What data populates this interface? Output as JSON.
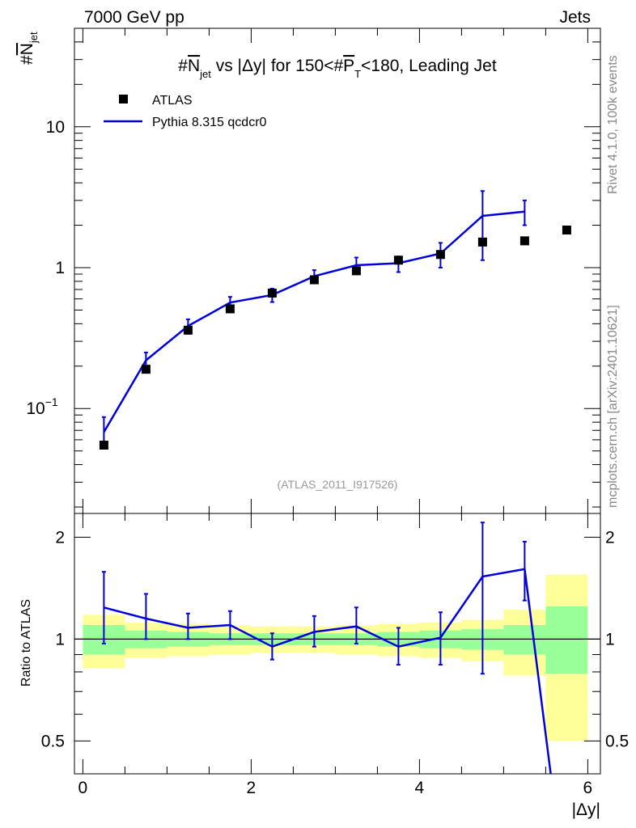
{
  "header": {
    "left": "7000 GeV pp",
    "right": "Jets"
  },
  "side_text": {
    "rivet": "Rivet 4.1.0,  100k events",
    "mcplots": "mcplots.cern.ch [arXiv:2401.10621]"
  },
  "colors": {
    "mc": "#0000dd",
    "data": "#000000",
    "band_inner": "#99ff99",
    "band_outer": "#ffff99"
  },
  "chart_data": [
    {
      "type": "scatter",
      "panel": "main",
      "title": "#N_jet vs |Δy| for 150<#P_T<180, Leading Jet",
      "title_parts": {
        "pre": "#",
        "n": "N",
        "n_sub": "jet",
        "mid": " vs |Δy| for 150<#",
        "p": "P",
        "p_sub": "T",
        "post": "<180, Leading Jet"
      },
      "ylabel": {
        "pre": "#",
        "n": "N",
        "sub": "jet"
      },
      "y_scale": "log",
      "ylim": [
        0.018,
        50
      ],
      "xlim": [
        -0.1,
        6.15
      ],
      "y_ticks": [
        {
          "value": 10,
          "label": "10"
        },
        {
          "value": 1,
          "label": "1"
        },
        {
          "value": 0.1,
          "label_base": "10",
          "label_exp": "−1"
        }
      ],
      "watermark": "(ATLAS_2011_I917526)",
      "legend": {
        "position": "top-left",
        "data_label": "ATLAS",
        "mc_label": "Pythia 8.315 qcdcr0"
      },
      "series": [
        {
          "name": "ATLAS",
          "kind": "points",
          "x": [
            0.25,
            0.75,
            1.25,
            1.75,
            2.25,
            2.75,
            3.25,
            3.75,
            4.25,
            4.75,
            5.25,
            5.75
          ],
          "y": [
            0.055,
            0.19,
            0.36,
            0.51,
            0.66,
            0.82,
            0.95,
            1.13,
            1.24,
            1.52,
            1.55,
            1.85
          ]
        },
        {
          "name": "Pythia 8.315 qcdcr0",
          "kind": "line",
          "x": [
            0.25,
            0.75,
            1.25,
            1.75,
            2.25,
            2.75,
            3.25,
            3.75,
            4.25,
            4.75,
            5.25
          ],
          "y": [
            0.068,
            0.22,
            0.385,
            0.565,
            0.64,
            0.87,
            1.04,
            1.075,
            1.26,
            2.33,
            2.5
          ],
          "err_low": [
            0.053,
            0.19,
            0.34,
            0.52,
            0.57,
            0.78,
            0.93,
            0.93,
            1.0,
            1.13,
            2.0
          ],
          "err_high": [
            0.087,
            0.25,
            0.43,
            0.62,
            0.71,
            0.96,
            1.18,
            1.2,
            1.5,
            3.5,
            3.0
          ]
        }
      ]
    },
    {
      "type": "line",
      "panel": "ratio",
      "ylabel": "Ratio to ATLAS",
      "xlabel": "|Δy|",
      "ylim": [
        0.4,
        2.35
      ],
      "xlim": [
        -0.1,
        6.15
      ],
      "y_ticks": [
        {
          "value": 0.5,
          "label": "0.5"
        },
        {
          "value": 1,
          "label": "1"
        },
        {
          "value": 2,
          "label": "2"
        }
      ],
      "x_ticks": [
        {
          "value": 0,
          "label": "0"
        },
        {
          "value": 2,
          "label": "2"
        },
        {
          "value": 4,
          "label": "4"
        },
        {
          "value": 6,
          "label": "6"
        }
      ],
      "bands": {
        "edges": [
          0,
          0.5,
          1,
          1.5,
          2,
          2.5,
          3,
          3.5,
          4,
          4.5,
          5,
          5.5,
          6
        ],
        "inner_low": [
          0.9,
          0.94,
          0.95,
          0.96,
          0.96,
          0.96,
          0.96,
          0.95,
          0.94,
          0.93,
          0.9,
          0.79
        ],
        "inner_high": [
          1.1,
          1.06,
          1.05,
          1.04,
          1.04,
          1.04,
          1.04,
          1.05,
          1.06,
          1.07,
          1.1,
          1.25
        ],
        "outer_low": [
          0.82,
          0.88,
          0.89,
          0.9,
          0.91,
          0.91,
          0.9,
          0.89,
          0.88,
          0.86,
          0.78,
          0.5
        ],
        "outer_high": [
          1.18,
          1.12,
          1.11,
          1.1,
          1.09,
          1.09,
          1.1,
          1.11,
          1.12,
          1.14,
          1.22,
          1.55
        ]
      },
      "series": [
        {
          "name": "Pythia 8.315 qcdcr0 / ATLAS",
          "x": [
            0.25,
            0.75,
            1.25,
            1.75,
            2.25,
            2.75,
            3.25,
            3.75,
            4.25,
            4.75,
            5.25,
            5.75
          ],
          "y": [
            1.24,
            1.15,
            1.08,
            1.1,
            0.95,
            1.05,
            1.09,
            0.95,
            1.01,
            1.53,
            1.61,
            0.0
          ],
          "err_low": [
            0.97,
            1.0,
            1.0,
            1.0,
            0.87,
            0.95,
            0.97,
            0.84,
            0.84,
            0.79,
            1.3,
            null
          ],
          "err_high": [
            1.58,
            1.36,
            1.19,
            1.21,
            1.04,
            1.17,
            1.24,
            1.08,
            1.2,
            2.21,
            1.94,
            null
          ]
        }
      ]
    }
  ]
}
